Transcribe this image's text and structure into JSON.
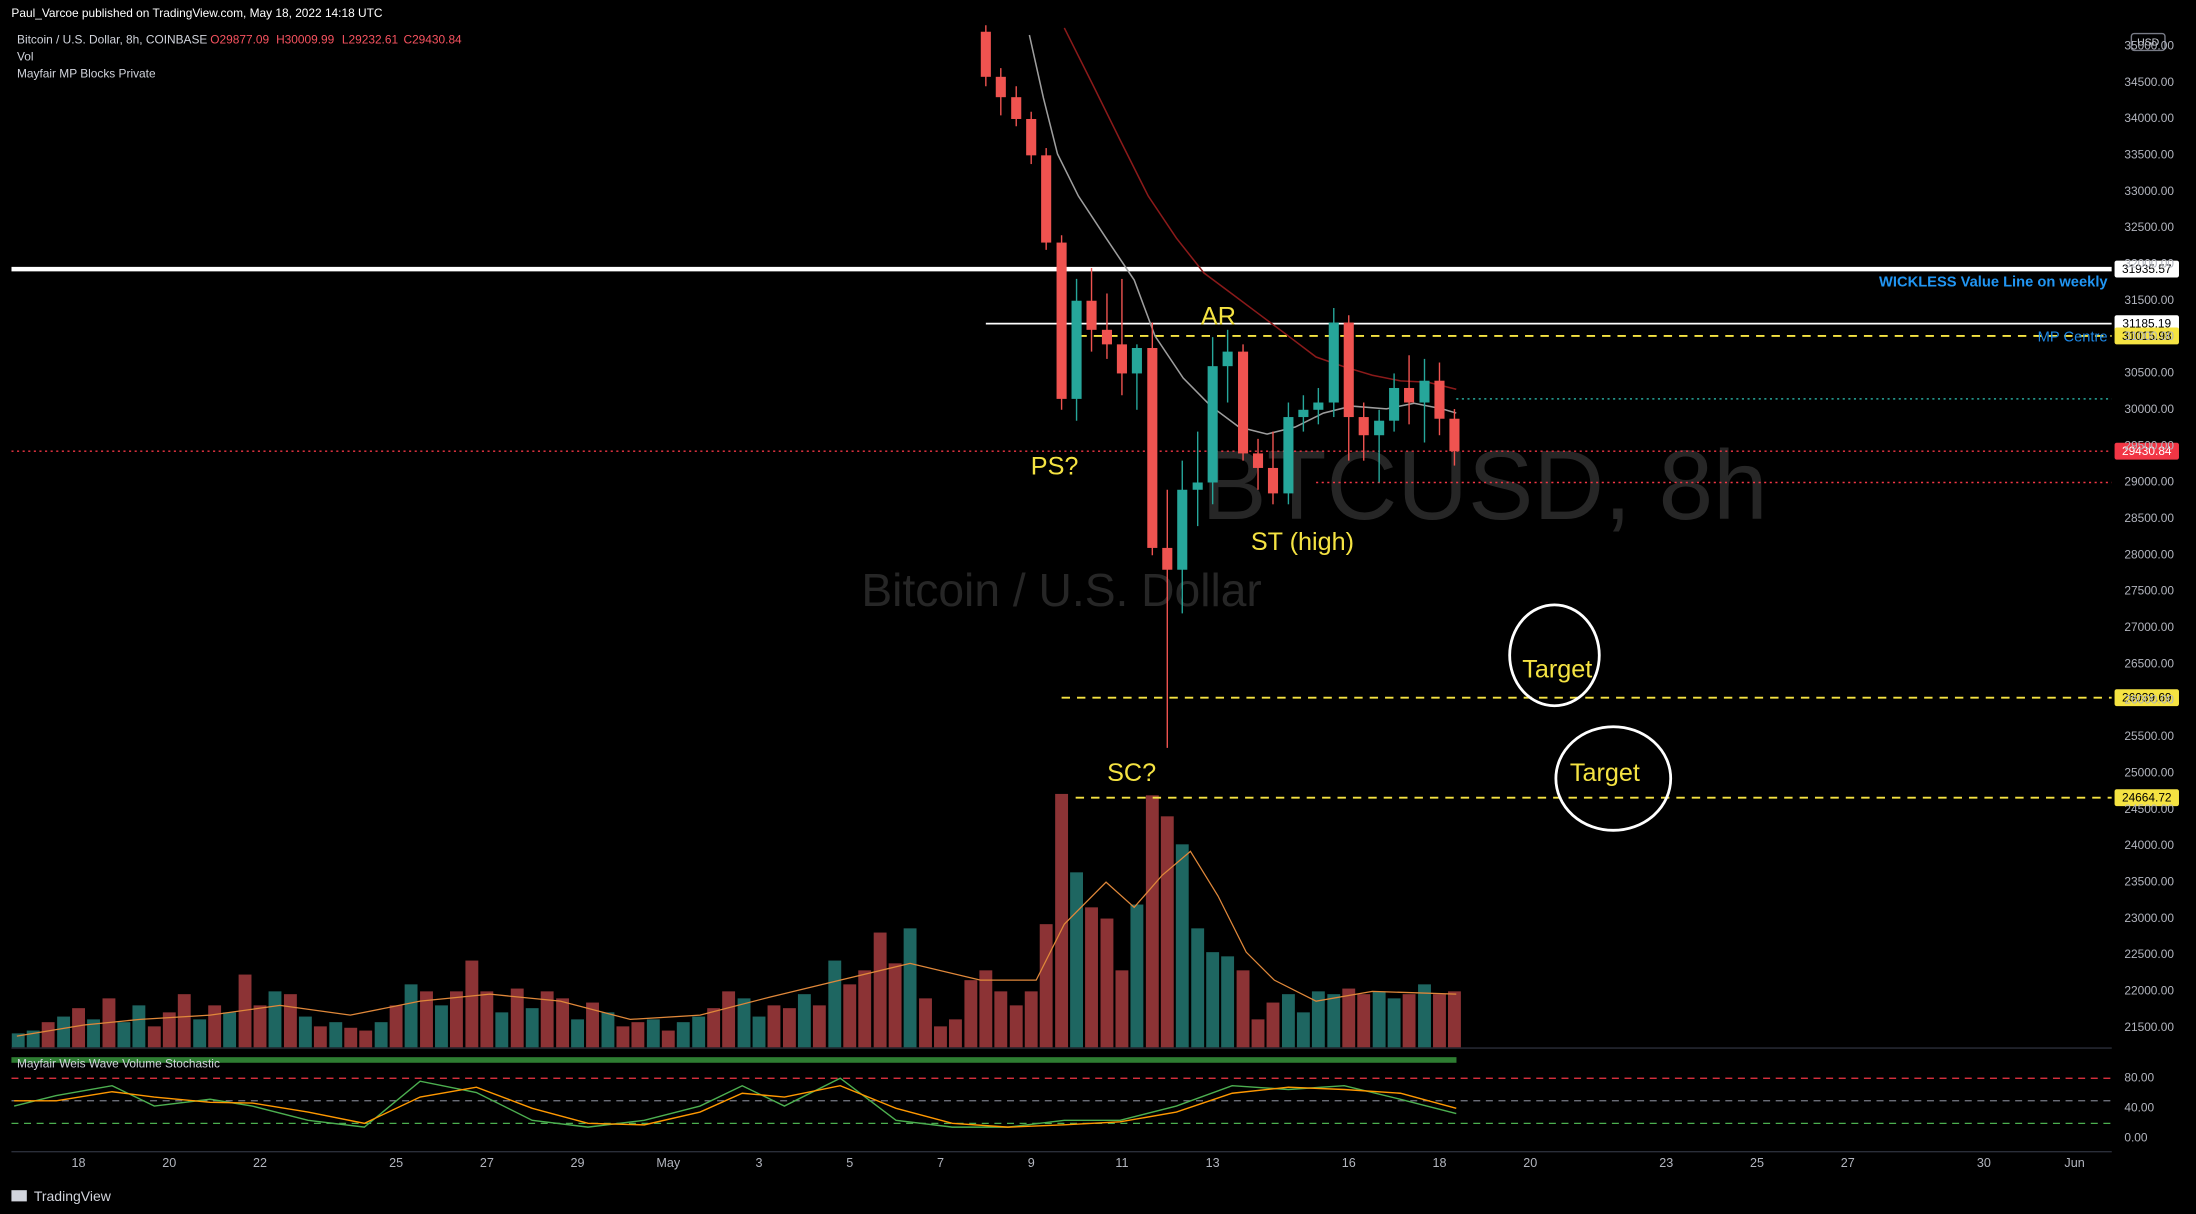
{
  "header": {
    "publisher": "Paul_Varcoe published on TradingView.com, May 18, 2022 14:18 UTC",
    "symbol": "Bitcoin / U.S. Dollar, 8h, COINBASE",
    "ohlc": [
      "O29877.09",
      "H30009.99",
      "L29232.61",
      "C29430.84"
    ],
    "ohlc_color": "#f7525f",
    "indicators": [
      "Vol",
      "Mayfair MP Blocks Private"
    ],
    "currency": "USD",
    "watermark": [
      "BTCUSD, 8h",
      "Bitcoin / U.S. Dollar"
    ],
    "footer": "TradingView"
  },
  "chart_data": {
    "type": "candlestick",
    "x": [
      38,
      38.33,
      38.67,
      39,
      39.33,
      39.67,
      40,
      40.33,
      40.67,
      41,
      41.33,
      41.67,
      42,
      42.33,
      42.67,
      43,
      43.33,
      43.67,
      44,
      44.33,
      44.67,
      45,
      45.33,
      45.67,
      46,
      46.33,
      46.67,
      47,
      47.33,
      47.67,
      48,
      48.33
    ],
    "open": [
      35200,
      34580,
      34300,
      34000,
      33500,
      32300,
      30150,
      31500,
      31100,
      30900,
      30500,
      30850,
      28100,
      27800,
      28900,
      29000,
      30600,
      30800,
      29400,
      29200,
      28850,
      29900,
      30000,
      30100,
      31200,
      29900,
      29650,
      29850,
      30300,
      30100,
      30400,
      29877.09
    ],
    "high": [
      35400,
      34700,
      34450,
      34100,
      33600,
      32400,
      31800,
      31950,
      31600,
      31800,
      30900,
      31200,
      28900,
      29300,
      29700,
      31000,
      31100,
      30900,
      29600,
      29700,
      30100,
      30200,
      30300,
      31400,
      31300,
      30100,
      30000,
      30500,
      30750,
      30700,
      30650,
      30009.99
    ],
    "low": [
      34450,
      34050,
      33900,
      33380,
      32200,
      30000,
      29850,
      30800,
      30700,
      30200,
      30000,
      28000,
      25350,
      27200,
      28400,
      28700,
      30100,
      29300,
      28900,
      28700,
      28700,
      29700,
      29800,
      29900,
      29300,
      29300,
      29000,
      29700,
      29800,
      29550,
      29650,
      29232.61
    ],
    "close": [
      34580,
      34300,
      34000,
      33500,
      32300,
      30150,
      31500,
      31100,
      30900,
      30500,
      30850,
      28100,
      27800,
      28900,
      29000,
      30600,
      30800,
      29400,
      29200,
      28850,
      29900,
      30000,
      30100,
      31200,
      29900,
      29650,
      29850,
      30300,
      30100,
      30400,
      29877.09,
      29430.84
    ],
    "up_color": "#26a69a",
    "down_color": "#ef5350",
    "xlim": [
      16.52,
      62.82
    ],
    "xticks": [
      18,
      20,
      22,
      25,
      27,
      29,
      {
        "value": 31,
        "label": "May"
      },
      {
        "value": 33,
        "label": "3"
      },
      {
        "value": 35,
        "label": "5"
      },
      {
        "value": 37,
        "label": "7"
      },
      {
        "value": 39,
        "label": "9"
      },
      {
        "value": 41,
        "label": "11"
      },
      {
        "value": 43,
        "label": "13"
      },
      {
        "value": 46,
        "label": "16"
      },
      {
        "value": 48,
        "label": "18"
      },
      {
        "value": 50,
        "label": "20"
      },
      {
        "value": 53,
        "label": "23"
      },
      {
        "value": 55,
        "label": "25"
      },
      {
        "value": 57,
        "label": "27"
      },
      {
        "value": 60,
        "label": "30"
      },
      {
        "value": 62,
        "label": "Jun"
      }
    ],
    "ylim": [
      21230,
      35290
    ],
    "yticks": [
      {
        "value": 21500,
        "label": "21500.00"
      },
      {
        "value": 22000,
        "label": "22000.00"
      },
      {
        "value": 22500,
        "label": "22500.00"
      },
      {
        "value": 23000,
        "label": "23000.00"
      },
      {
        "value": 23500,
        "label": "23500.00"
      },
      {
        "value": 24000,
        "label": "24000.00"
      },
      {
        "value": 24500,
        "label": "24500.00"
      },
      {
        "value": 25000,
        "label": "25000.00"
      },
      {
        "value": 25500,
        "label": "25500.00"
      },
      {
        "value": 26000,
        "label": "26000.00"
      },
      {
        "value": 26500,
        "label": "26500.00"
      },
      {
        "value": 27000,
        "label": "27000.00"
      },
      {
        "value": 27500,
        "label": "27500.00"
      },
      {
        "value": 28000,
        "label": "28000.00"
      },
      {
        "value": 28500,
        "label": "28500.00"
      },
      {
        "value": 29000,
        "label": "29000.00"
      },
      {
        "value": 29500,
        "label": "29500.00"
      },
      {
        "value": 30000,
        "label": "30000.00"
      },
      {
        "value": 30500,
        "label": "30500.00"
      },
      {
        "value": 31000,
        "label": "31000.00"
      },
      {
        "value": 31500,
        "label": "31500.00"
      },
      {
        "value": 32000,
        "label": "32000.00"
      },
      {
        "value": 32500,
        "label": "32500.00"
      },
      {
        "value": 33000,
        "label": "33000.00"
      },
      {
        "value": 33500,
        "label": "33500.00"
      },
      {
        "value": 34000,
        "label": "34000.00"
      },
      {
        "value": 34500,
        "label": "34500.00"
      },
      {
        "value": 35000,
        "label": "35000.00"
      }
    ],
    "grid": false,
    "levels": [
      {
        "value": 31935.57,
        "color": "#ffffff",
        "style": "heavy",
        "text_color": "#000000"
      },
      {
        "value": 31185.19,
        "color": "#ffffff",
        "style": "solid",
        "from": 38,
        "text_color": "#000000"
      },
      {
        "value": 31015.98,
        "color": "#f5e342",
        "style": "dashed",
        "from": 40.04,
        "text_color": "#000000"
      },
      {
        "value": 26039.69,
        "color": "#f5e342",
        "style": "dashed",
        "from": 39.67,
        "text_color": "#000000"
      },
      {
        "value": 24664.72,
        "color": "#f5e342",
        "style": "dashed",
        "from": 39.98,
        "text_color": "#000000"
      },
      {
        "value": 29430.84,
        "color": "#f23645",
        "style": "dotted",
        "text_color": "#ffffff"
      }
    ],
    "guides": [
      {
        "value": 30150,
        "color": "#26a69a",
        "from": 48.37
      },
      {
        "value": 29000,
        "color": "#f23645",
        "from": 45.28
      }
    ],
    "notes": [
      {
        "text": "WICKLESS Value Line on weekly",
        "color": "#2196f3"
      },
      {
        "text": "MP Centre",
        "color": "#1e88e5"
      }
    ],
    "annotations": [
      "AR",
      "PS?",
      "ST (high)",
      "SC?",
      "Target",
      "Target"
    ],
    "moving_averages": [
      {
        "color": "#9e9e9e",
        "x": [
          38.96,
          39.27,
          39.58,
          40.04,
          40.65,
          41.27,
          41.73,
          42.35,
          42.96,
          43.58,
          44.2,
          44.82,
          45.44,
          46.06,
          46.83,
          47.44,
          48.06,
          48.37
        ],
        "values": [
          35155,
          34288,
          33518,
          32940,
          32362,
          31785,
          31014,
          30437,
          30051,
          29763,
          29666,
          29763,
          29955,
          30051,
          30013,
          30090,
          30013,
          29955
        ]
      },
      {
        "color": "#8b1a1a",
        "x": [
          39.73,
          40.35,
          40.96,
          41.58,
          42.2,
          42.81,
          43.43,
          44.05,
          44.67,
          45.28,
          45.9,
          46.52,
          47.14,
          47.75,
          48.37
        ],
        "values": [
          35252,
          34481,
          33711,
          32940,
          32362,
          31881,
          31592,
          31303,
          31014,
          30726,
          30591,
          30475,
          30398,
          30379,
          30283
        ]
      }
    ],
    "volume": {
      "vlim": [
        0,
        200
      ],
      "x": [
        16.67,
        17,
        17.33,
        17.67,
        18,
        18.33,
        18.67,
        19,
        19.33,
        19.67,
        20,
        20.33,
        20.67,
        21,
        21.33,
        21.67,
        22,
        22.33,
        22.67,
        23,
        23.33,
        23.67,
        24,
        24.33,
        24.67,
        25,
        25.33,
        25.67,
        26,
        26.33,
        26.67,
        27,
        27.33,
        27.67,
        28,
        28.33,
        28.67,
        29,
        29.33,
        29.67,
        30,
        30.33,
        30.67,
        31,
        31.33,
        31.67,
        32,
        32.33,
        32.67,
        33,
        33.33,
        33.67,
        34,
        34.33,
        34.67,
        35,
        35.33,
        35.67,
        36,
        36.33,
        36.67,
        37,
        37.33,
        37.67,
        38,
        38.33,
        38.67,
        39,
        39.33,
        39.67,
        40,
        40.33,
        40.67,
        41,
        41.33,
        41.67,
        42,
        42.33,
        42.67,
        43,
        43.33,
        43.67,
        44,
        44.33,
        44.67,
        45,
        45.33,
        45.67,
        46,
        46.33,
        46.67,
        47,
        47.33,
        47.67,
        48,
        48.33
      ],
      "values": [
        10,
        12,
        18,
        22,
        28,
        20,
        35,
        18,
        30,
        15,
        25,
        38,
        20,
        30,
        25,
        52,
        30,
        40,
        38,
        22,
        15,
        18,
        14,
        12,
        18,
        30,
        45,
        40,
        30,
        40,
        62,
        40,
        25,
        42,
        28,
        40,
        35,
        20,
        32,
        25,
        15,
        18,
        20,
        12,
        18,
        22,
        28,
        40,
        35,
        22,
        30,
        28,
        38,
        30,
        62,
        45,
        55,
        82,
        60,
        85,
        35,
        15,
        20,
        48,
        55,
        40,
        30,
        40,
        88,
        181,
        125,
        100,
        92,
        55,
        102,
        180,
        165,
        145,
        85,
        68,
        65,
        55,
        20,
        32,
        38,
        25,
        40,
        38,
        42,
        38,
        40,
        35,
        38,
        45,
        38,
        40
      ],
      "colors": [
        "#1e6661",
        "#1e6661",
        "#8c3335",
        "#1e6661",
        "#8c3335",
        "#1e6661",
        "#8c3335",
        "#1e6661",
        "#1e6661",
        "#8c3335",
        "#8c3335",
        "#8c3335",
        "#1e6661",
        "#8c3335",
        "#1e6661",
        "#8c3335",
        "#8c3335",
        "#1e6661",
        "#8c3335",
        "#1e6661",
        "#8c3335",
        "#1e6661",
        "#8c3335",
        "#8c3335",
        "#1e6661",
        "#8c3335",
        "#1e6661",
        "#8c3335",
        "#1e6661",
        "#8c3335",
        "#8c3335",
        "#8c3335",
        "#1e6661",
        "#8c3335",
        "#1e6661",
        "#8c3335",
        "#8c3335",
        "#1e6661",
        "#8c3335",
        "#1e6661",
        "#8c3335",
        "#8c3335",
        "#1e6661",
        "#8c3335",
        "#1e6661",
        "#1e6661",
        "#8c3335",
        "#8c3335",
        "#1e6661",
        "#1e6661",
        "#8c3335",
        "#8c3335",
        "#1e6661",
        "#8c3335",
        "#1e6661",
        "#8c3335",
        "#8c3335",
        "#8c3335",
        "#8c3335",
        "#1e6661",
        "#8c3335",
        "#8c3335",
        "#8c3335",
        "#8c3335",
        "#8c3335",
        "#8c3335",
        "#8c3335",
        "#8c3335",
        "#8c3335",
        "#8c3335",
        "#1e6661",
        "#8c3335",
        "#8c3335",
        "#8c3335",
        "#1e6661",
        "#8c3335",
        "#8c3335",
        "#1e6661",
        "#1e6661",
        "#1e6661",
        "#1e6661",
        "#8c3335",
        "#8c3335",
        "#8c3335",
        "#1e6661",
        "#1e6661",
        "#1e6661",
        "#1e6661",
        "#8c3335",
        "#8c3335",
        "#1e6661",
        "#1e6661",
        "#8c3335",
        "#1e6661",
        "#8c3335",
        "#8c3335"
      ],
      "ma": {
        "color": "#e0883a",
        "x": [
          16.64,
          18.12,
          19.36,
          20.9,
          22.44,
          23.99,
          25.53,
          27.07,
          28.62,
          30.16,
          31.7,
          33.25,
          34.79,
          36.33,
          37.88,
          39.11,
          39.73,
          40.65,
          41.27,
          41.89,
          42.51,
          43.12,
          43.74,
          44.36,
          45.28,
          46.52,
          48.37
        ],
        "values": [
          8,
          16,
          20,
          23,
          30,
          23,
          33,
          38,
          33,
          20,
          23,
          36,
          48,
          60,
          48,
          48,
          88,
          118,
          100,
          123,
          140,
          108,
          68,
          48,
          33,
          40,
          38
        ]
      }
    },
    "stochastic": {
      "title": "Mayfair Weis Wave Volume Stochastic",
      "slim": [
        -16.7,
        113.5
      ],
      "sticks": [
        {
          "value": 0,
          "label": "0.00"
        },
        {
          "value": 40,
          "label": "40.00"
        },
        {
          "value": 80,
          "label": "80.00"
        }
      ],
      "levels": [
        {
          "value": 80,
          "color": "#f23645"
        },
        {
          "value": 50,
          "color": "#787b86"
        },
        {
          "value": 20,
          "color": "#4caf50"
        }
      ],
      "x": [
        16.58,
        17.51,
        18.74,
        19.67,
        20.9,
        21.83,
        23.06,
        24.3,
        25.53,
        26.77,
        28,
        29.23,
        30.47,
        31.7,
        32.63,
        33.56,
        34.79,
        36.02,
        37.26,
        38.49,
        39.73,
        40.96,
        42.2,
        43.43,
        44.67,
        45.9,
        47.14,
        48.37
      ],
      "series": [
        {
          "color": "#4caf50",
          "values": [
            43,
            57,
            70,
            43,
            52,
            43,
            24,
            15,
            76,
            61,
            24,
            15,
            24,
            43,
            70,
            43,
            80,
            24,
            15,
            15,
            24,
            24,
            43,
            70,
            65,
            70,
            52,
            33
          ]
        },
        {
          "color": "#ff9800",
          "values": [
            50,
            50,
            62,
            55,
            48,
            47,
            35,
            20,
            55,
            68,
            40,
            20,
            18,
            35,
            60,
            55,
            70,
            40,
            20,
            15,
            18,
            22,
            35,
            60,
            68,
            65,
            60,
            40
          ]
        }
      ]
    }
  }
}
